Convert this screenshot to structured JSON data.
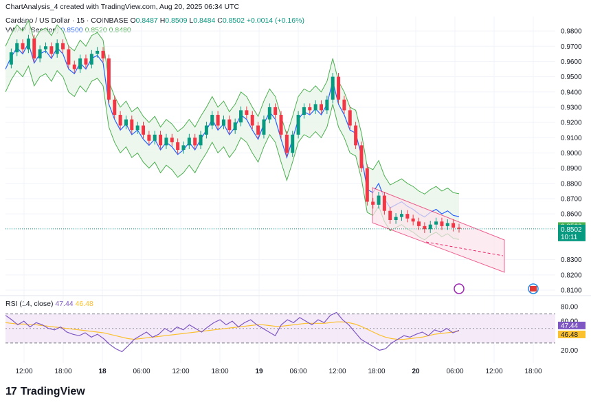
{
  "header": {
    "caption": "ChartAnalysis_4 created with TradingView.com, Aug 20, 2025 06:34 UTC"
  },
  "legend": {
    "symbol": "Cardano / US Dollar · 15 · COINBASE",
    "o_label": "O",
    "o_value": "0.8487",
    "h_label": "H",
    "h_value": "0.8509",
    "l_label": "L",
    "l_value": "0.8484",
    "c_label": "C",
    "c_value": "0.8502",
    "change": "+0.0014 (+0.16%)",
    "vwap_label": "VWAP (Session)",
    "vwap_values": [
      "0.8500",
      "0.8520",
      "0.8480"
    ],
    "rsi_label": "RSI (14, close)",
    "rsi_values": [
      "47.44",
      "46.48"
    ]
  },
  "brand": {
    "logo": "17",
    "name": "TradingView"
  },
  "colors": {
    "up": "#089981",
    "down": "#f23645",
    "vwap": "#2962ff",
    "band": "#4caf50",
    "band_fill": "#e8f5e9",
    "channel": "#e91e63",
    "rsi": "#7e57c2",
    "rsi_ma": "#fbc02d",
    "rsi_fill": "#f3e5f5"
  },
  "chart_data": [
    {
      "type": "candlestick",
      "title": "Cardano / US Dollar · 15 · COINBASE",
      "xlabel": "",
      "ylabel": "",
      "ylim": [
        0.81,
        0.985
      ],
      "y_ticks": [
        "0.9800",
        "0.9700",
        "0.9600",
        "0.9500",
        "0.9400",
        "0.9300",
        "0.9200",
        "0.9100",
        "0.9000",
        "0.8900",
        "0.8800",
        "0.8700",
        "0.8600",
        "0.8300",
        "0.8200",
        "0.8100"
      ],
      "x_ticks": [
        "12:00",
        "18:00",
        "18",
        "06:00",
        "12:00",
        "18:00",
        "19",
        "06:00",
        "12:00",
        "18:00",
        "20",
        "06:00",
        "12:00",
        "18:00"
      ],
      "current_price": {
        "label": "0.8502",
        "countdown": "10:11",
        "value": 0.8502
      },
      "vwap_tags": [
        {
          "label": "0.8520",
          "value": 0.852,
          "kind": "upper"
        },
        {
          "label": "0.8500",
          "value": 0.85,
          "kind": "vwap"
        },
        {
          "label": "0.8480",
          "value": 0.848,
          "kind": "lower"
        }
      ],
      "close_series": [
        {
          "t": 0,
          "c": 0.958
        },
        {
          "t": 4,
          "c": 0.966
        },
        {
          "t": 8,
          "c": 0.972
        },
        {
          "t": 12,
          "c": 0.968
        },
        {
          "t": 16,
          "c": 0.975
        },
        {
          "t": 20,
          "c": 0.962
        },
        {
          "t": 24,
          "c": 0.968
        },
        {
          "t": 28,
          "c": 0.97
        },
        {
          "t": 32,
          "c": 0.965
        },
        {
          "t": 36,
          "c": 0.972
        },
        {
          "t": 40,
          "c": 0.968
        },
        {
          "t": 44,
          "c": 0.958
        },
        {
          "t": 48,
          "c": 0.955
        },
        {
          "t": 52,
          "c": 0.962
        },
        {
          "t": 56,
          "c": 0.958
        },
        {
          "t": 60,
          "c": 0.965
        },
        {
          "t": 64,
          "c": 0.967
        },
        {
          "t": 68,
          "c": 0.962
        },
        {
          "t": 72,
          "c": 0.935
        },
        {
          "t": 76,
          "c": 0.925
        },
        {
          "t": 80,
          "c": 0.918
        },
        {
          "t": 84,
          "c": 0.922
        },
        {
          "t": 88,
          "c": 0.915
        },
        {
          "t": 92,
          "c": 0.918
        },
        {
          "t": 96,
          "c": 0.912
        },
        {
          "t": 100,
          "c": 0.908
        },
        {
          "t": 104,
          "c": 0.912
        },
        {
          "t": 108,
          "c": 0.905
        },
        {
          "t": 112,
          "c": 0.91
        },
        {
          "t": 116,
          "c": 0.907
        },
        {
          "t": 120,
          "c": 0.902
        },
        {
          "t": 124,
          "c": 0.905
        },
        {
          "t": 128,
          "c": 0.91
        },
        {
          "t": 132,
          "c": 0.905
        },
        {
          "t": 136,
          "c": 0.912
        },
        {
          "t": 140,
          "c": 0.918
        },
        {
          "t": 144,
          "c": 0.925
        },
        {
          "t": 148,
          "c": 0.918
        },
        {
          "t": 152,
          "c": 0.922
        },
        {
          "t": 156,
          "c": 0.915
        },
        {
          "t": 160,
          "c": 0.92
        },
        {
          "t": 164,
          "c": 0.928
        },
        {
          "t": 168,
          "c": 0.925
        },
        {
          "t": 172,
          "c": 0.918
        },
        {
          "t": 176,
          "c": 0.912
        },
        {
          "t": 180,
          "c": 0.922
        },
        {
          "t": 184,
          "c": 0.93
        },
        {
          "t": 188,
          "c": 0.925
        },
        {
          "t": 192,
          "c": 0.912
        },
        {
          "t": 196,
          "c": 0.9
        },
        {
          "t": 200,
          "c": 0.912
        },
        {
          "t": 204,
          "c": 0.925
        },
        {
          "t": 208,
          "c": 0.93
        },
        {
          "t": 212,
          "c": 0.928
        },
        {
          "t": 216,
          "c": 0.932
        },
        {
          "t": 220,
          "c": 0.928
        },
        {
          "t": 224,
          "c": 0.935
        },
        {
          "t": 228,
          "c": 0.95
        },
        {
          "t": 232,
          "c": 0.935
        },
        {
          "t": 236,
          "c": 0.928
        },
        {
          "t": 240,
          "c": 0.918
        },
        {
          "t": 244,
          "c": 0.905
        },
        {
          "t": 248,
          "c": 0.89
        },
        {
          "t": 252,
          "c": 0.868
        },
        {
          "t": 256,
          "c": 0.866
        },
        {
          "t": 260,
          "c": 0.872
        },
        {
          "t": 264,
          "c": 0.862
        },
        {
          "t": 268,
          "c": 0.856
        },
        {
          "t": 272,
          "c": 0.858
        },
        {
          "t": 276,
          "c": 0.86
        },
        {
          "t": 280,
          "c": 0.857
        },
        {
          "t": 284,
          "c": 0.855
        },
        {
          "t": 288,
          "c": 0.852
        },
        {
          "t": 292,
          "c": 0.85
        },
        {
          "t": 296,
          "c": 0.853
        },
        {
          "t": 300,
          "c": 0.855
        },
        {
          "t": 304,
          "c": 0.852
        },
        {
          "t": 308,
          "c": 0.854
        },
        {
          "t": 312,
          "c": 0.851
        },
        {
          "t": 316,
          "c": 0.8502
        }
      ]
    },
    {
      "type": "line",
      "title": "RSI (14, close)",
      "ylim": [
        10,
        80
      ],
      "y_ticks": [
        "80.00",
        "60.00",
        "20.00"
      ],
      "tags": [
        {
          "label": "47.44",
          "value": 47.44,
          "kind": "rsi"
        },
        {
          "label": "46.48",
          "value": 46.48,
          "kind": "ma"
        }
      ],
      "series": [
        {
          "name": "RSI",
          "values": [
            68,
            62,
            55,
            60,
            52,
            58,
            55,
            50,
            48,
            52,
            45,
            42,
            40,
            44,
            38,
            42,
            36,
            28,
            22,
            18,
            26,
            35,
            40,
            45,
            38,
            42,
            50,
            45,
            52,
            48,
            55,
            50,
            45,
            52,
            58,
            62,
            55,
            60,
            52,
            58,
            62,
            55,
            50,
            45,
            40,
            55,
            62,
            58,
            65,
            60,
            55,
            62,
            58,
            68,
            72,
            62,
            55,
            45,
            35,
            30,
            25,
            20,
            22,
            30,
            35,
            40,
            38,
            42,
            45,
            40,
            48,
            45,
            50,
            44,
            47.44
          ]
        },
        {
          "name": "RSI MA",
          "values": [
            58,
            57,
            56,
            56,
            55,
            55,
            54,
            53,
            52,
            51,
            50,
            49,
            48,
            47,
            46,
            45,
            44,
            42,
            40,
            38,
            36,
            35,
            36,
            37,
            38,
            39,
            40,
            41,
            42,
            43,
            44,
            45,
            46,
            47,
            48,
            49,
            50,
            51,
            52,
            53,
            54,
            55,
            55,
            54,
            53,
            53,
            54,
            55,
            56,
            57,
            57,
            57,
            57,
            58,
            59,
            59,
            58,
            56,
            53,
            49,
            45,
            41,
            38,
            36,
            35,
            35,
            36,
            37,
            38,
            40,
            42,
            43,
            44,
            45,
            46.48
          ]
        }
      ]
    }
  ]
}
